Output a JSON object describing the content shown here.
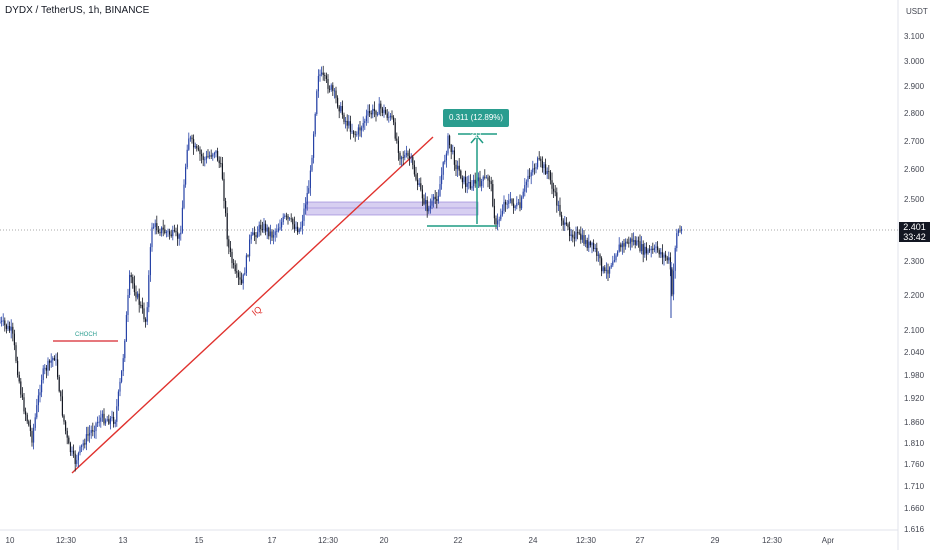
{
  "header": {
    "symbol": "DYDX / TetherUS, 1h, BINANCE"
  },
  "price_axis": {
    "unit": "USDT",
    "ticks": [
      "3.100",
      "3.000",
      "2.900",
      "2.800",
      "2.700",
      "2.600",
      "2.500",
      "2.400",
      "2.300",
      "2.200",
      "2.100",
      "2.040",
      "1.980",
      "1.920",
      "1.860",
      "1.810",
      "1.760",
      "1.710",
      "1.660",
      "1.616"
    ],
    "current_price": "2.401",
    "countdown": "33:42"
  },
  "time_axis": {
    "ticks": [
      "10",
      "12:30",
      "13",
      "15",
      "17",
      "12:30",
      "20",
      "22",
      "24",
      "12:30",
      "27",
      "29",
      "12:30",
      "Apr"
    ]
  },
  "annotations": {
    "measure_label": "0.311 (12.89%) 311",
    "choch_label": "CHOCH",
    "trendline_label": "IQ"
  },
  "colors": {
    "candle": "#2743a6",
    "trendline": "#e0322e",
    "measure": "#1f9b84",
    "zone": "#b7a7e6",
    "choch": "#d6262e"
  },
  "chart_data": {
    "type": "line",
    "title": "DYDX / TetherUS, 1h, BINANCE",
    "x": [
      "10",
      "12:30",
      "13",
      "15",
      "17",
      "12:30",
      "20",
      "22",
      "24",
      "12:30",
      "27"
    ],
    "series": [
      {
        "values": [
          2.12,
          1.81,
          1.75,
          2.7,
          2.28,
          2.98,
          2.74,
          2.6,
          2.65,
          2.3,
          2.4
        ]
      }
    ],
    "ylabel": "USDT",
    "ylim": [
      1.616,
      3.16
    ]
  }
}
